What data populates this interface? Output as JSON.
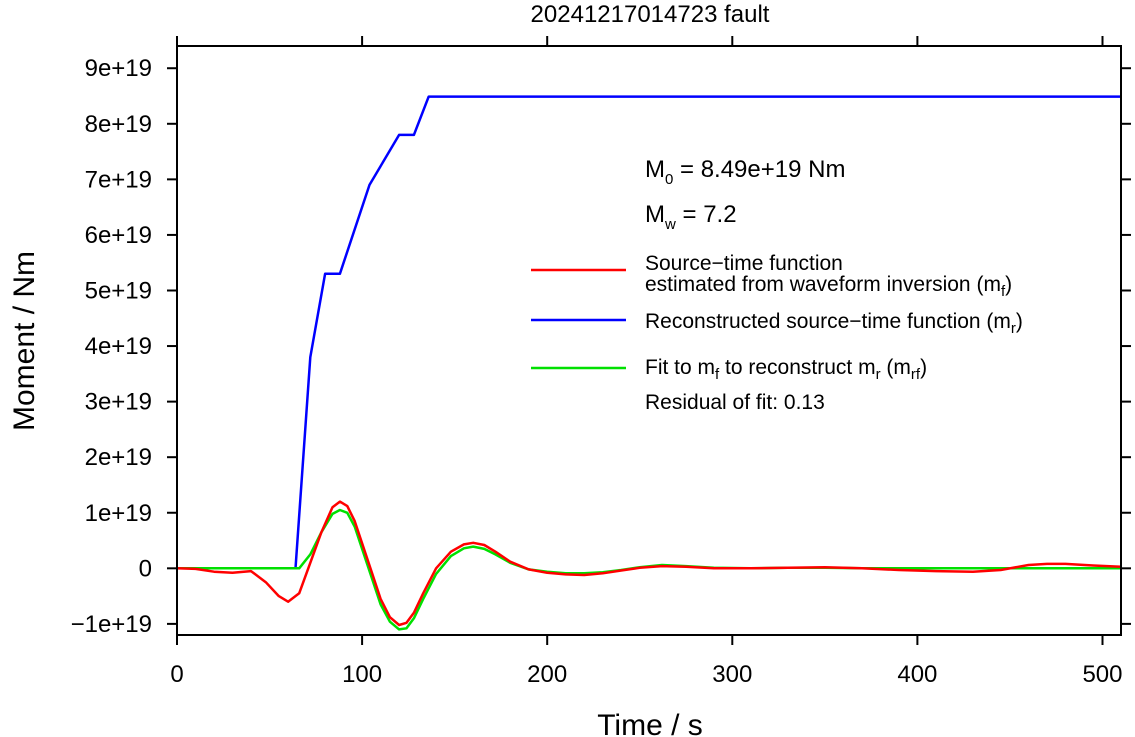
{
  "chart_data": {
    "type": "line",
    "title": "20241217014723 fault",
    "xlabel": "Time / s",
    "ylabel": "Moment / Nm",
    "xlim": [
      0,
      510
    ],
    "ylim": [
      -1.2e+19,
      9.4e+19
    ],
    "xticks": [
      0,
      100,
      200,
      300,
      400,
      500
    ],
    "xtick_labels": [
      "0",
      "100",
      "200",
      "300",
      "400",
      "500"
    ],
    "yticks": [
      -1e+19,
      0,
      1e+19,
      2e+19,
      3e+19,
      4e+19,
      5e+19,
      6e+19,
      7e+19,
      8e+19,
      9e+19
    ],
    "ytick_labels": [
      "−1e+19",
      "0",
      "1e+19",
      "2e+19",
      "3e+19",
      "4e+19",
      "5e+19",
      "6e+19",
      "7e+19",
      "8e+19",
      "9e+19"
    ],
    "grid": false,
    "legend_position": "right",
    "series": [
      {
        "name": "Source−time function estimated from waveform inversion (mf)",
        "color": "#ff0000",
        "x": [
          0,
          10,
          20,
          30,
          40,
          48,
          55,
          60,
          66,
          72,
          78,
          84,
          88,
          92,
          96,
          100,
          105,
          110,
          115,
          120,
          124,
          128,
          133,
          140,
          148,
          155,
          160,
          166,
          172,
          180,
          190,
          200,
          210,
          220,
          230,
          240,
          250,
          262,
          275,
          290,
          310,
          330,
          350,
          370,
          390,
          410,
          430,
          445,
          460,
          470,
          480,
          495,
          510
        ],
        "y": [
          0,
          -1e+17,
          -6e+17,
          -8e+17,
          -5e+17,
          -2.5e+18,
          -5e+18,
          -6e+18,
          -4.5e+18,
          1e+18,
          6.5e+18,
          1.1e+19,
          1.2e+19,
          1.12e+19,
          8.5e+18,
          4.5e+18,
          -5e+17,
          -5.5e+18,
          -8.8e+18,
          -1.02e+19,
          -9.8e+18,
          -8e+18,
          -4.5e+18,
          0.0,
          3e+18,
          4.3e+18,
          4.6e+18,
          4.2e+18,
          3e+18,
          1.2e+18,
          -2e+17,
          -8e+17,
          -1.1e+18,
          -1.2e+18,
          -9e+17,
          -4e+17,
          1e+17,
          4e+17,
          3e+17,
          0.0,
          0.0,
          1e+17,
          2e+17,
          0.0,
          -3e+17,
          -5e+17,
          -6e+17,
          -3e+17,
          6e+17,
          8e+17,
          8e+17,
          5e+17,
          3e+17
        ]
      },
      {
        "name": "Reconstructed source−time function (mr)",
        "color": "#0000ff",
        "x": [
          0,
          64,
          72,
          80,
          88,
          104,
          120,
          128,
          136,
          510
        ],
        "y": [
          0,
          0,
          3.8e+19,
          5.3e+19,
          5.3e+19,
          6.9e+19,
          7.8e+19,
          7.8e+19,
          8.49e+19,
          8.49e+19
        ],
        "points_shape": "line"
      },
      {
        "name": "Fit to mf to reconstruct mr (mrf)",
        "color": "#00e000",
        "x": [
          0,
          60,
          66,
          72,
          78,
          84,
          88,
          92,
          96,
          100,
          105,
          110,
          115,
          120,
          124,
          128,
          133,
          140,
          148,
          155,
          160,
          166,
          172,
          180,
          190,
          200,
          210,
          220,
          230,
          240,
          250,
          262,
          275,
          290,
          310,
          330,
          350,
          370,
          390,
          410,
          430,
          450,
          470,
          490,
          510
        ],
        "y": [
          0,
          0,
          0,
          2.5e+18,
          6.5e+18,
          9.8e+18,
          1.05e+19,
          1e+19,
          7.5e+18,
          3.5e+18,
          -1.5e+18,
          -6.5e+18,
          -9.6e+18,
          -1.1e+19,
          -1.08e+19,
          -9e+18,
          -5.5e+18,
          -1e+18,
          2.2e+18,
          3.6e+18,
          3.9e+18,
          3.5e+18,
          2.5e+18,
          1e+18,
          -2e+17,
          -6e+17,
          -9e+17,
          -9e+17,
          -7e+17,
          -3e+17,
          2e+17,
          6e+17,
          4e+17,
          1e+17,
          0.0,
          1e+17,
          1e+17,
          0.0,
          0.0,
          0.0,
          0.0,
          0.0,
          0.0,
          0.0,
          0.0
        ]
      }
    ],
    "annotations": {
      "m0_prefix": "M",
      "m0_sub": "0",
      "m0_value": " = 8.49e+19 Nm",
      "mw_prefix": "M",
      "mw_sub": "w",
      "mw_value": " = 7.2",
      "legend1_line1": "Source−time function",
      "legend1_line2_a": "estimated from waveform inversion (m",
      "legend1_line2_sub": "f",
      "legend1_line2_b": ")",
      "legend2_a": "Reconstructed source−time function (m",
      "legend2_sub": "r",
      "legend2_b": ")",
      "legend3_a": "Fit to m",
      "legend3_sub1": "f",
      "legend3_b": " to reconstruct m",
      "legend3_sub2": "r",
      "legend3_c": " (m",
      "legend3_sub3": "rf",
      "legend3_d": ")",
      "residual": "Residual of fit: 0.13"
    }
  }
}
